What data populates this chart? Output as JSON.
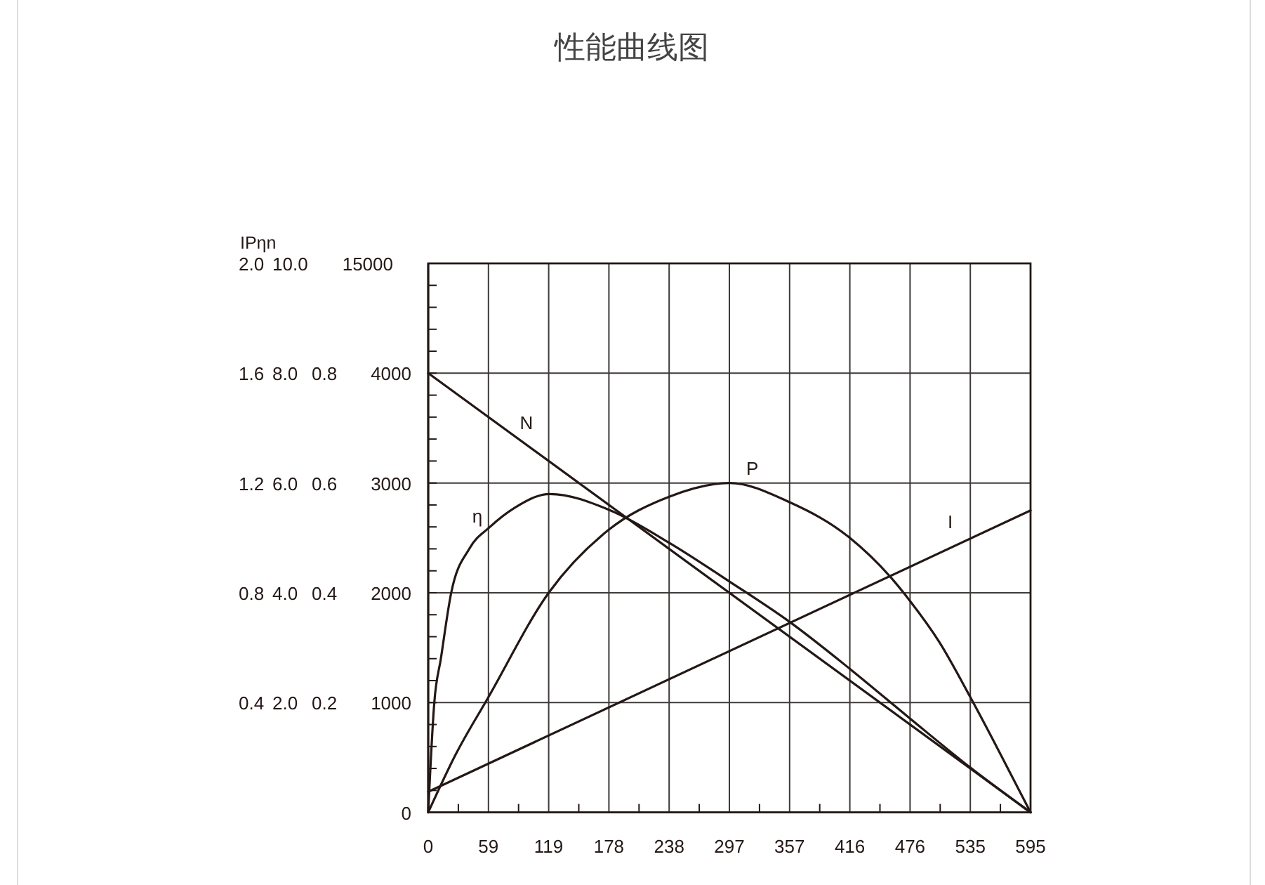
{
  "chart_data": [
    {
      "type": "line",
      "title": "性能曲线图",
      "y3label": "IPηn",
      "annotations": [
        "15000"
      ],
      "xlim": [
        0,
        595
      ],
      "xticks": [
        0,
        {
          "value": 59.5,
          "label": "59"
        },
        119,
        {
          "value": 178.5,
          "label": "178"
        },
        238,
        {
          "value": 297.5,
          "label": "297"
        },
        357,
        {
          "value": 416.5,
          "label": "416"
        },
        476,
        {
          "value": 535.5,
          "label": "535"
        },
        595
      ],
      "ylim": [
        0,
        5000
      ],
      "yticks": [
        0,
        1000,
        2000,
        3000,
        4000
      ],
      "y2lim": [
        0,
        10
      ],
      "y2ticks": [
        {
          "value": 2,
          "label": "2.0"
        },
        {
          "value": 4,
          "label": "4.0"
        },
        {
          "value": 6,
          "label": "6.0"
        },
        {
          "value": 8,
          "label": "8.0"
        },
        {
          "value": 10,
          "label": "10.0"
        }
      ],
      "y3lim": [
        0,
        2
      ],
      "y3ticks": [
        0.4,
        0.8,
        1.2,
        1.6,
        {
          "value": 2,
          "label": "2.0"
        }
      ],
      "grid": true,
      "line_style": "solid",
      "series": [
        {
          "name": "I",
          "color": "#231815",
          "axis": "y3",
          "x": [
            0,
            595
          ],
          "values": [
            0.075,
            1.1
          ]
        },
        {
          "name": "P",
          "color": "#231815",
          "axis": "y2",
          "x": [
            0,
            27,
            59.5,
            119,
            178.5,
            238,
            297.5,
            357,
            416.5,
            456,
            476,
            505,
            535.5,
            560,
            595
          ],
          "values": [
            0,
            1.05,
            2.1,
            4.0,
            5.15,
            5.75,
            6.0,
            5.65,
            5.0,
            4.3,
            3.85,
            3.1,
            2.1,
            1.25,
            0
          ]
        },
        {
          "name": "N",
          "color": "#231815",
          "x": [
            0,
            595
          ],
          "values": [
            4000,
            0
          ]
        }
      ]
    },
    {
      "type": "line",
      "xlim": [
        0,
        595
      ],
      "ylim": [
        0,
        1
      ],
      "yticks": [
        0.2,
        0.4,
        0.6,
        0.8
      ],
      "tick_labels": "y",
      "line_style": "solid",
      "series": [
        {
          "name": "η",
          "color": "#231815",
          "x": [
            0,
            6,
            12.5,
            22.7,
            40.5,
            61,
            85.5,
            120,
            180,
            239,
            298,
            357,
            417.5,
            476.6,
            536,
            595
          ],
          "values": [
            0,
            0.2,
            0.28,
            0.4,
            0.48,
            0.52,
            0.555,
            0.58,
            0.55,
            0.49,
            0.42,
            0.347,
            0.26,
            0.17,
            0.081,
            0
          ]
        }
      ]
    }
  ]
}
